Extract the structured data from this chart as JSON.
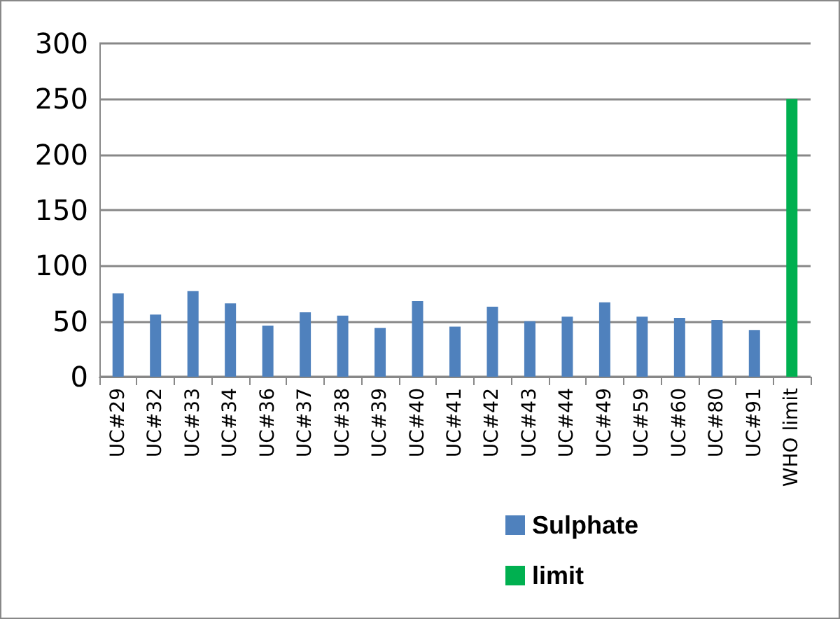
{
  "chart_data": {
    "type": "bar",
    "categories": [
      "UC#29",
      "UC#32",
      "UC#33",
      "UC#34",
      "UC#36",
      "UC#37",
      "UC#38",
      "UC#39",
      "UC#40",
      "UC#41",
      "UC#42",
      "UC#43",
      "UC#44",
      "UC#49",
      "UC#59",
      "UC#60",
      "UC#80",
      "UC#91",
      "WHO limit"
    ],
    "series": [
      {
        "name": "Sulphate",
        "color": "#4f81bd",
        "values": [
          75,
          56,
          77,
          66,
          46,
          58,
          55,
          44,
          68,
          45,
          63,
          50,
          54,
          67,
          54,
          53,
          51,
          42,
          null
        ]
      },
      {
        "name": "limit",
        "color": "#00b050",
        "values": [
          null,
          null,
          null,
          null,
          null,
          null,
          null,
          null,
          null,
          null,
          null,
          null,
          null,
          null,
          null,
          null,
          null,
          null,
          250
        ]
      }
    ],
    "ylim": [
      0,
      300
    ],
    "yticks": [
      0,
      50,
      100,
      150,
      200,
      250,
      300
    ],
    "grid": "y",
    "legend": "bottom"
  }
}
